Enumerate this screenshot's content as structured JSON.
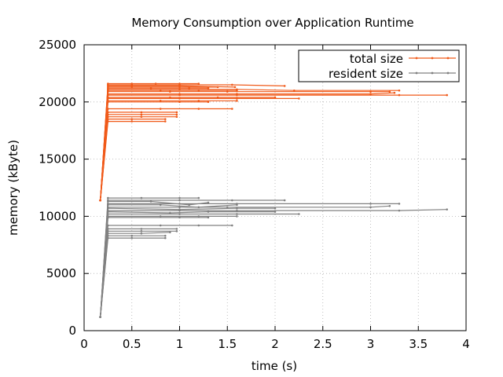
{
  "chart_data": {
    "type": "line",
    "title": "Memory Consumption over Application Runtime",
    "xlabel": "time (s)",
    "ylabel": "memory  (kByte)",
    "xlim": [
      0,
      4
    ],
    "ylim": [
      0,
      25000
    ],
    "xticks": [
      0,
      0.5,
      1,
      1.5,
      2,
      2.5,
      3,
      3.5,
      4
    ],
    "xtick_labels": [
      "0",
      "0.5",
      "1",
      "1.5",
      "2",
      "2.5",
      "3",
      "3.5",
      "4"
    ],
    "yticks": [
      0,
      5000,
      10000,
      15000,
      20000,
      25000
    ],
    "ytick_labels": [
      "0",
      "5000",
      "10000",
      "15000",
      "20000",
      "25000"
    ],
    "grid": true,
    "legend_position": "top-right",
    "series": [
      {
        "name": "total size",
        "color": "#f05a1a",
        "runs": [
          {
            "start": [
              0.17,
              11400
            ],
            "points": [
              [
                0.25,
                21600
              ],
              [
                0.5,
                21600
              ],
              [
                0.75,
                21600
              ],
              [
                1.0,
                21600
              ],
              [
                1.2,
                21600
              ]
            ]
          },
          {
            "start": [
              0.17,
              11400
            ],
            "points": [
              [
                0.25,
                21500
              ],
              [
                0.5,
                21500
              ],
              [
                1.0,
                21500
              ],
              [
                1.55,
                21500
              ],
              [
                2.1,
                21400
              ]
            ]
          },
          {
            "start": [
              0.17,
              11400
            ],
            "points": [
              [
                0.25,
                21400
              ],
              [
                0.5,
                21400
              ],
              [
                1.0,
                21400
              ],
              [
                1.58,
                21300
              ]
            ]
          },
          {
            "start": [
              0.17,
              11400
            ],
            "points": [
              [
                0.25,
                21300
              ],
              [
                0.5,
                21300
              ],
              [
                1.0,
                21300
              ],
              [
                1.4,
                21300
              ]
            ]
          },
          {
            "start": [
              0.17,
              11400
            ],
            "points": [
              [
                0.25,
                21200
              ],
              [
                0.7,
                21200
              ],
              [
                1.1,
                21200
              ],
              [
                1.3,
                21200
              ]
            ]
          },
          {
            "start": [
              0.17,
              11400
            ],
            "points": [
              [
                0.25,
                21100
              ],
              [
                1.0,
                21100
              ],
              [
                1.6,
                21100
              ],
              [
                2.2,
                21000
              ],
              [
                3.3,
                21000
              ]
            ]
          },
          {
            "start": [
              0.17,
              11400
            ],
            "points": [
              [
                0.25,
                21000
              ],
              [
                0.8,
                21000
              ],
              [
                1.2,
                21000
              ],
              [
                1.6,
                21000
              ]
            ]
          },
          {
            "start": [
              0.17,
              11400
            ],
            "points": [
              [
                0.25,
                20900
              ],
              [
                0.9,
                20900
              ],
              [
                1.5,
                20900
              ],
              [
                3.0,
                20900
              ],
              [
                3.2,
                20900
              ]
            ]
          },
          {
            "start": [
              0.17,
              11400
            ],
            "points": [
              [
                0.25,
                20700
              ],
              [
                1.0,
                20700
              ],
              [
                1.6,
                20700
              ],
              [
                3.0,
                20700
              ],
              [
                3.25,
                20800
              ]
            ]
          },
          {
            "start": [
              0.17,
              11400
            ],
            "points": [
              [
                0.25,
                20600
              ],
              [
                1.0,
                20600
              ],
              [
                1.6,
                20600
              ],
              [
                3.3,
                20600
              ],
              [
                3.8,
                20600
              ]
            ]
          },
          {
            "start": [
              0.17,
              11400
            ],
            "points": [
              [
                0.25,
                20400
              ],
              [
                0.9,
                20400
              ],
              [
                1.4,
                20400
              ],
              [
                2.0,
                20400
              ]
            ]
          },
          {
            "start": [
              0.17,
              11400
            ],
            "points": [
              [
                0.25,
                20300
              ],
              [
                1.0,
                20300
              ],
              [
                1.6,
                20300
              ],
              [
                2.25,
                20300
              ]
            ]
          },
          {
            "start": [
              0.17,
              11400
            ],
            "points": [
              [
                0.25,
                20100
              ],
              [
                0.8,
                20100
              ],
              [
                1.2,
                20100
              ],
              [
                1.6,
                20100
              ]
            ]
          },
          {
            "start": [
              0.17,
              11400
            ],
            "points": [
              [
                0.25,
                20000
              ],
              [
                1.0,
                20000
              ],
              [
                1.3,
                20000
              ]
            ]
          },
          {
            "start": [
              0.17,
              11400
            ],
            "points": [
              [
                0.25,
                19400
              ],
              [
                0.8,
                19400
              ],
              [
                1.2,
                19400
              ],
              [
                1.55,
                19400
              ]
            ]
          },
          {
            "start": [
              0.17,
              11400
            ],
            "points": [
              [
                0.25,
                19100
              ],
              [
                0.6,
                19100
              ],
              [
                0.97,
                19100
              ]
            ]
          },
          {
            "start": [
              0.17,
              11400
            ],
            "points": [
              [
                0.25,
                18900
              ],
              [
                0.6,
                18900
              ],
              [
                0.97,
                18900
              ]
            ]
          },
          {
            "start": [
              0.17,
              11400
            ],
            "points": [
              [
                0.25,
                18700
              ],
              [
                0.6,
                18700
              ],
              [
                0.97,
                18700
              ]
            ]
          },
          {
            "start": [
              0.17,
              11400
            ],
            "points": [
              [
                0.25,
                18500
              ],
              [
                0.5,
                18500
              ],
              [
                0.85,
                18500
              ]
            ]
          },
          {
            "start": [
              0.17,
              11400
            ],
            "points": [
              [
                0.25,
                18300
              ],
              [
                0.5,
                18300
              ],
              [
                0.85,
                18300
              ]
            ]
          }
        ]
      },
      {
        "name": "resident size",
        "color": "#808080",
        "runs": [
          {
            "start": [
              0.17,
              1200
            ],
            "points": [
              [
                0.25,
                11600
              ],
              [
                0.6,
                11600
              ],
              [
                1.0,
                11600
              ],
              [
                1.2,
                11600
              ]
            ]
          },
          {
            "start": [
              0.17,
              1200
            ],
            "points": [
              [
                0.25,
                11400
              ],
              [
                1.0,
                11400
              ],
              [
                1.55,
                11400
              ],
              [
                2.1,
                11400
              ]
            ]
          },
          {
            "start": [
              0.17,
              1200
            ],
            "points": [
              [
                0.25,
                11300
              ],
              [
                0.7,
                11300
              ],
              [
                1.1,
                11000
              ],
              [
                1.3,
                11200
              ]
            ]
          },
          {
            "start": [
              0.17,
              1200
            ],
            "points": [
              [
                0.25,
                11100
              ],
              [
                1.0,
                11100
              ],
              [
                1.6,
                11100
              ],
              [
                3.0,
                11100
              ],
              [
                3.3,
                11100
              ]
            ]
          },
          {
            "start": [
              0.17,
              1200
            ],
            "points": [
              [
                0.25,
                11000
              ],
              [
                0.8,
                11000
              ],
              [
                1.2,
                10800
              ],
              [
                1.6,
                11000
              ]
            ]
          },
          {
            "start": [
              0.17,
              1200
            ],
            "points": [
              [
                0.25,
                10800
              ],
              [
                1.0,
                10800
              ],
              [
                1.5,
                10800
              ],
              [
                3.0,
                10800
              ],
              [
                3.2,
                10900
              ]
            ]
          },
          {
            "start": [
              0.17,
              1200
            ],
            "points": [
              [
                0.25,
                10700
              ],
              [
                1.0,
                10600
              ],
              [
                1.6,
                10700
              ],
              [
                2.0,
                10700
              ]
            ]
          },
          {
            "start": [
              0.17,
              1200
            ],
            "points": [
              [
                0.25,
                10500
              ],
              [
                1.0,
                10500
              ],
              [
                1.6,
                10500
              ],
              [
                3.3,
                10500
              ],
              [
                3.8,
                10600
              ]
            ]
          },
          {
            "start": [
              0.17,
              1200
            ],
            "points": [
              [
                0.25,
                10400
              ],
              [
                0.9,
                10300
              ],
              [
                1.3,
                10400
              ],
              [
                2.0,
                10400
              ]
            ]
          },
          {
            "start": [
              0.17,
              1200
            ],
            "points": [
              [
                0.25,
                10200
              ],
              [
                1.0,
                10200
              ],
              [
                1.6,
                10200
              ],
              [
                2.25,
                10200
              ]
            ]
          },
          {
            "start": [
              0.17,
              1200
            ],
            "points": [
              [
                0.25,
                10000
              ],
              [
                0.8,
                10000
              ],
              [
                1.2,
                10000
              ],
              [
                1.6,
                10000
              ]
            ]
          },
          {
            "start": [
              0.17,
              1200
            ],
            "points": [
              [
                0.25,
                9900
              ],
              [
                1.0,
                9900
              ],
              [
                1.3,
                9900
              ]
            ]
          },
          {
            "start": [
              0.17,
              1200
            ],
            "points": [
              [
                0.25,
                9200
              ],
              [
                0.8,
                9200
              ],
              [
                1.2,
                9200
              ],
              [
                1.55,
                9200
              ]
            ]
          },
          {
            "start": [
              0.17,
              1200
            ],
            "points": [
              [
                0.25,
                8900
              ],
              [
                0.6,
                8900
              ],
              [
                0.97,
                8900
              ]
            ]
          },
          {
            "start": [
              0.17,
              1200
            ],
            "points": [
              [
                0.25,
                8700
              ],
              [
                0.6,
                8700
              ],
              [
                0.97,
                8700
              ]
            ]
          },
          {
            "start": [
              0.17,
              1200
            ],
            "points": [
              [
                0.25,
                8500
              ],
              [
                0.6,
                8500
              ],
              [
                0.9,
                8600
              ]
            ]
          },
          {
            "start": [
              0.17,
              1200
            ],
            "points": [
              [
                0.25,
                8300
              ],
              [
                0.5,
                8300
              ],
              [
                0.85,
                8300
              ]
            ]
          },
          {
            "start": [
              0.17,
              1200
            ],
            "points": [
              [
                0.25,
                8100
              ],
              [
                0.5,
                8100
              ],
              [
                0.85,
                8100
              ]
            ]
          }
        ]
      }
    ]
  }
}
